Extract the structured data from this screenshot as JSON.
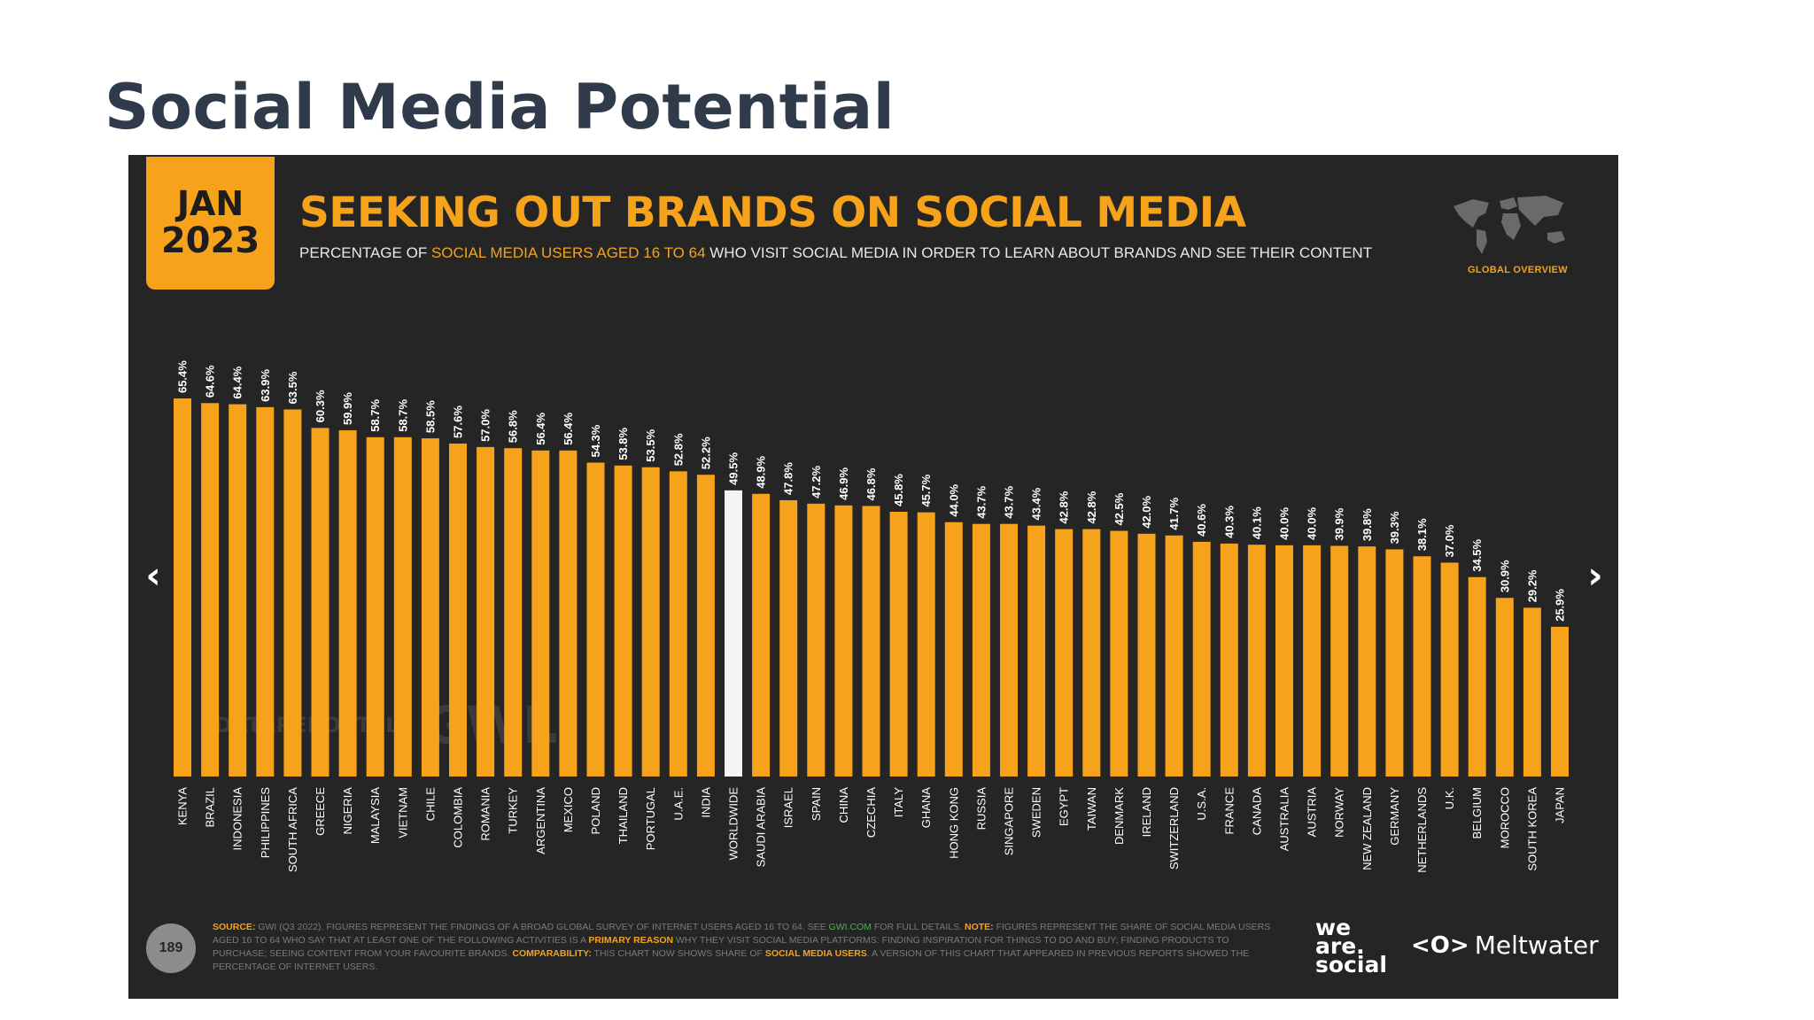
{
  "page": {
    "title": "Social Media Potential"
  },
  "slide": {
    "badge": {
      "month": "JAN",
      "year": "2023"
    },
    "heading": "SEEKING OUT BRANDS ON SOCIAL MEDIA",
    "subtitle": {
      "prefix": "PERCENTAGE OF ",
      "highlight": "SOCIAL MEDIA USERS AGED 16 TO 64",
      "suffix": " WHO VISIT SOCIAL MEDIA IN ORDER TO LEARN ABOUT BRANDS AND SEE THEIR CONTENT"
    },
    "global_overview": "GLOBAL OVERVIEW",
    "watermark": {
      "datareportal": "DATAREPORTAL",
      "gwi": "GWI."
    },
    "page_number": "189",
    "source": {
      "source_label": "SOURCE:",
      "source_text": " GWI (Q3 2022). FIGURES REPRESENT THE FINDINGS OF A BROAD GLOBAL SURVEY OF INTERNET USERS AGED 16 TO 64. SEE ",
      "gwi_link": "GWI.COM",
      "source_text2": " FOR FULL DETAILS. ",
      "note_label": "NOTE:",
      "note_text": " FIGURES REPRESENT THE SHARE OF SOCIAL MEDIA USERS AGED 16 TO 64 WHO SAY THAT AT LEAST ONE OF THE FOLLOWING ACTIVITIES IS A ",
      "primary_reason": "PRIMARY REASON",
      "note_text2": " WHY THEY VISIT SOCIAL MEDIA PLATFORMS: FINDING INSPIRATION FOR THINGS TO DO AND BUY; FINDING PRODUCTS TO PURCHASE; SEEING CONTENT FROM YOUR FAVOURITE BRANDS. ",
      "comparability_label": "COMPARABILITY:",
      "comparability_text": " THIS CHART NOW SHOWS SHARE OF ",
      "smu": "SOCIAL MEDIA USERS",
      "comparability_text2": ". A VERSION OF THIS CHART THAT APPEARED IN PREVIOUS REPORTS SHOWED THE PERCENTAGE OF INTERNET USERS."
    },
    "brands": {
      "was_line1": "we",
      "was_line2": "are.",
      "was_line3": "social",
      "meltwater": "Meltwater",
      "meltwater_logo": "<O>"
    },
    "nav": {
      "prev": "‹",
      "next": "›"
    }
  },
  "colors": {
    "bar": "#f6a21a",
    "highlight_bar": "#f4f4f4",
    "background": "#252525",
    "accent": "#f6a21a"
  },
  "chart_data": {
    "type": "bar",
    "title": "SEEKING OUT BRANDS ON SOCIAL MEDIA",
    "ylabel": "",
    "xlabel": "",
    "ylim": [
      0,
      70
    ],
    "highlight": "WORLDWIDE",
    "categories": [
      "KENYA",
      "BRAZIL",
      "INDONESIA",
      "PHILIPPINES",
      "SOUTH AFRICA",
      "GREECE",
      "NIGERIA",
      "MALAYSIA",
      "VIETNAM",
      "CHILE",
      "COLOMBIA",
      "ROMANIA",
      "TURKEY",
      "ARGENTINA",
      "MEXICO",
      "POLAND",
      "THAILAND",
      "PORTUGAL",
      "U.A.E.",
      "INDIA",
      "WORLDWIDE",
      "SAUDI ARABIA",
      "ISRAEL",
      "SPAIN",
      "CHINA",
      "CZECHIA",
      "ITALY",
      "GHANA",
      "HONG KONG",
      "RUSSIA",
      "SINGAPORE",
      "SWEDEN",
      "EGYPT",
      "TAIWAN",
      "DENMARK",
      "IRELAND",
      "SWITZERLAND",
      "U.S.A.",
      "FRANCE",
      "CANADA",
      "AUSTRALIA",
      "AUSTRIA",
      "NORWAY",
      "NEW ZEALAND",
      "GERMANY",
      "NETHERLANDS",
      "U.K.",
      "BELGIUM",
      "MOROCCO",
      "SOUTH KOREA",
      "JAPAN"
    ],
    "values": [
      65.4,
      64.6,
      64.4,
      63.9,
      63.5,
      60.3,
      59.9,
      58.7,
      58.7,
      58.5,
      57.6,
      57.0,
      56.8,
      56.4,
      56.4,
      54.3,
      53.8,
      53.5,
      52.8,
      52.2,
      49.5,
      48.9,
      47.8,
      47.2,
      46.9,
      46.8,
      45.8,
      45.7,
      44.0,
      43.7,
      43.7,
      43.4,
      42.8,
      42.8,
      42.5,
      42.0,
      41.7,
      40.6,
      40.3,
      40.1,
      40.0,
      40.0,
      39.9,
      39.8,
      39.3,
      38.1,
      37.0,
      34.5,
      30.9,
      29.2,
      25.9
    ],
    "value_labels": [
      "65.4%",
      "64.6%",
      "64.4%",
      "63.9%",
      "63.5%",
      "60.3%",
      "59.9%",
      "58.7%",
      "58.7%",
      "58.5%",
      "57.6%",
      "57.0%",
      "56.8%",
      "56.4%",
      "56.4%",
      "54.3%",
      "53.8%",
      "53.5%",
      "52.8%",
      "52.2%",
      "49.5%",
      "48.9%",
      "47.8%",
      "47.2%",
      "46.9%",
      "46.8%",
      "45.8%",
      "45.7%",
      "44.0%",
      "43.7%",
      "43.7%",
      "43.4%",
      "42.8%",
      "42.8%",
      "42.5%",
      "42.0%",
      "41.7%",
      "40.6%",
      "40.3%",
      "40.1%",
      "40.0%",
      "40.0%",
      "39.9%",
      "39.8%",
      "39.3%",
      "38.1%",
      "37.0%",
      "34.5%",
      "30.9%",
      "29.2%",
      "25.9%"
    ]
  }
}
